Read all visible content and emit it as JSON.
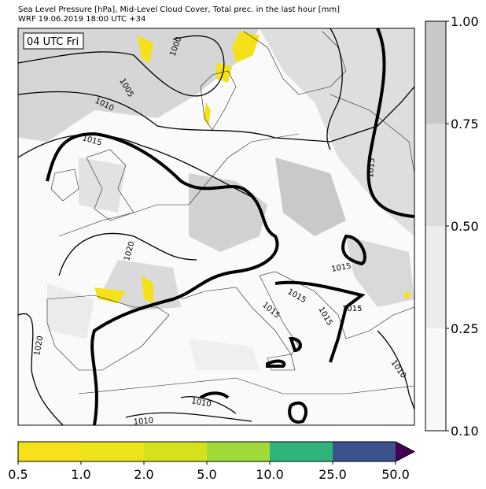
{
  "header": {
    "title": "Sea Level Pressure [hPa], Mid-Level Cloud Cover, Total prec. in the last hour [mm]",
    "subtitle": "WRF 19.06.2019 18:00 UTC +34"
  },
  "time_label": "04 UTC Fri",
  "isobar_labels": [
    "1000",
    "1005",
    "1010",
    "1015",
    "1015",
    "1020",
    "1015",
    "1015",
    "1015",
    "1015",
    "1015",
    "1020",
    "1010",
    "1010",
    "1010"
  ],
  "cloud_colorbar": {
    "ticks": [
      "1.00",
      "0.75",
      "0.50",
      "0.25",
      "0.10"
    ]
  },
  "precip_colorbar": {
    "ticks": [
      "0.5",
      "1.0",
      "2.0",
      "5.0",
      "10.0",
      "25.0",
      "50.0"
    ]
  }
}
